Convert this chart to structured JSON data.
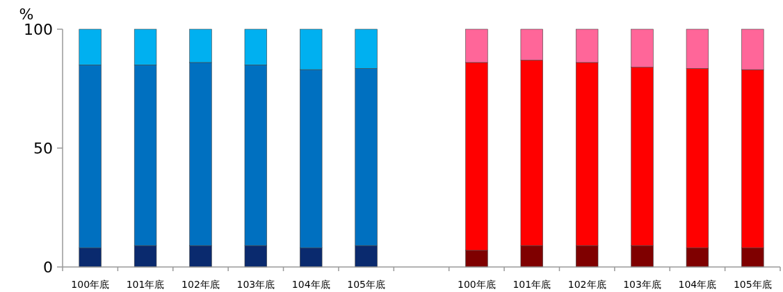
{
  "chart_data": {
    "type": "bar",
    "stacked": true,
    "ylabel": "%",
    "categories": [
      "100年底",
      "101年底",
      "102年底",
      "103年底",
      "104年底",
      "105年底",
      null,
      "100年底",
      "101年底",
      "102年底",
      "103年底",
      "104年底",
      "105年底"
    ],
    "ylim": [
      0,
      100
    ],
    "yticks": [
      0,
      50,
      100
    ],
    "grid": false,
    "series": [
      {
        "colors": [
          "#0a2a6e",
          "#0a2a6e",
          "#0a2a6e",
          "#0a2a6e",
          "#0a2a6e",
          "#0a2a6e",
          null,
          "#7f0000",
          "#7f0000",
          "#7f0000",
          "#7f0000",
          "#7f0000",
          "#7f0000"
        ],
        "values": [
          8,
          9,
          9,
          9,
          8,
          9,
          null,
          7,
          9,
          9,
          9,
          8,
          8
        ]
      },
      {
        "colors": [
          "#0070c0",
          "#0070c0",
          "#0070c0",
          "#0070c0",
          "#0070c0",
          "#0070c0",
          null,
          "#ff0000",
          "#ff0000",
          "#ff0000",
          "#ff0000",
          "#ff0000",
          "#ff0000"
        ],
        "values": [
          77,
          76,
          77,
          76,
          75,
          74.5,
          null,
          79,
          78,
          77,
          75,
          75.5,
          75
        ]
      },
      {
        "colors": [
          "#00b0f0",
          "#00b0f0",
          "#00b0f0",
          "#00b0f0",
          "#00b0f0",
          "#00b0f0",
          null,
          "#ff6699",
          "#ff6699",
          "#ff6699",
          "#ff6699",
          "#ff6699",
          "#ff6699"
        ],
        "values": [
          15,
          15,
          14,
          15,
          17,
          16.5,
          null,
          14,
          13,
          14,
          16,
          16.5,
          17
        ]
      }
    ]
  }
}
